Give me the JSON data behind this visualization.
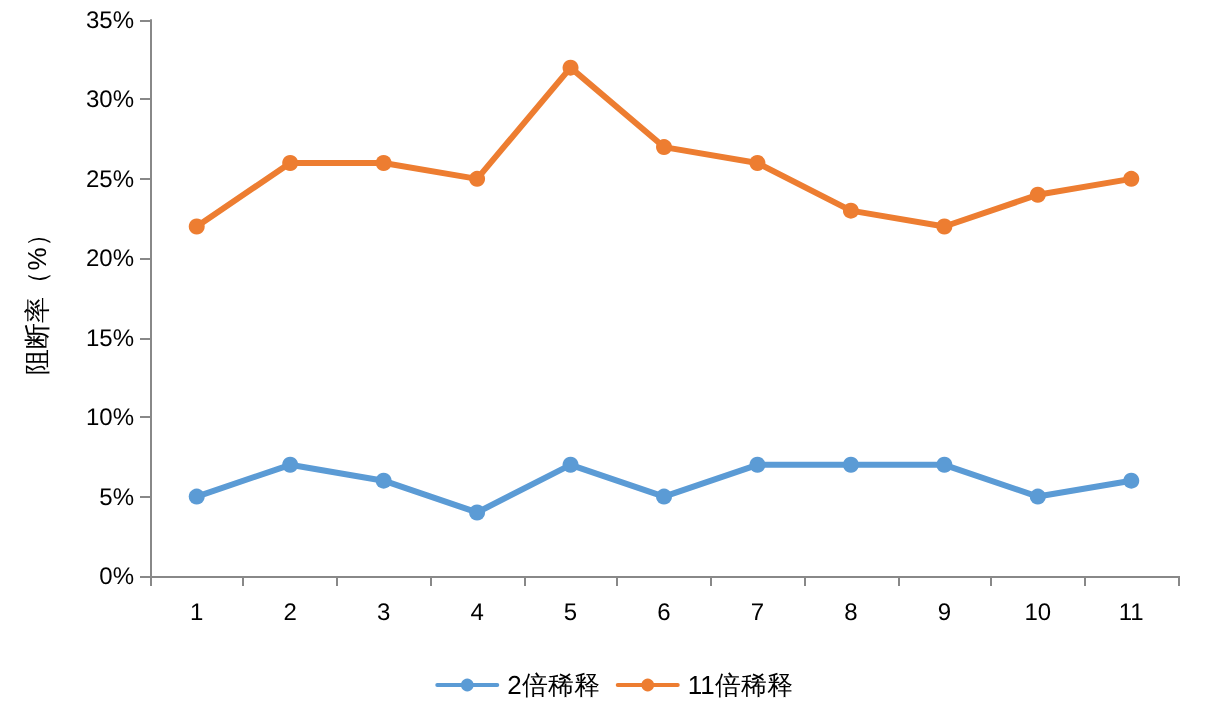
{
  "chart_data": {
    "type": "line",
    "ylabel": "阻断率（%）",
    "categories": [
      "1",
      "2",
      "3",
      "4",
      "5",
      "6",
      "7",
      "8",
      "9",
      "10",
      "11"
    ],
    "series": [
      {
        "name": "2倍稀释",
        "color": "#5b9bd5",
        "values": [
          5,
          7,
          6,
          4,
          7,
          5,
          7,
          7,
          7,
          5,
          6
        ]
      },
      {
        "name": "11倍稀释",
        "color": "#ed7d31",
        "values": [
          22,
          26,
          26,
          25,
          32,
          27,
          26,
          23,
          22,
          24,
          25
        ]
      }
    ],
    "ylim": [
      0,
      35
    ],
    "yticks": [
      {
        "value": 0,
        "label": "0%"
      },
      {
        "value": 5,
        "label": "5%"
      },
      {
        "value": 10,
        "label": "10%"
      },
      {
        "value": 15,
        "label": "15%"
      },
      {
        "value": 20,
        "label": "20%"
      },
      {
        "value": 25,
        "label": "25%"
      },
      {
        "value": 30,
        "label": "30%"
      },
      {
        "value": 35,
        "label": "35%"
      }
    ],
    "grid": false,
    "legend": "bottom",
    "marker": "circle",
    "line_style": "solid"
  }
}
